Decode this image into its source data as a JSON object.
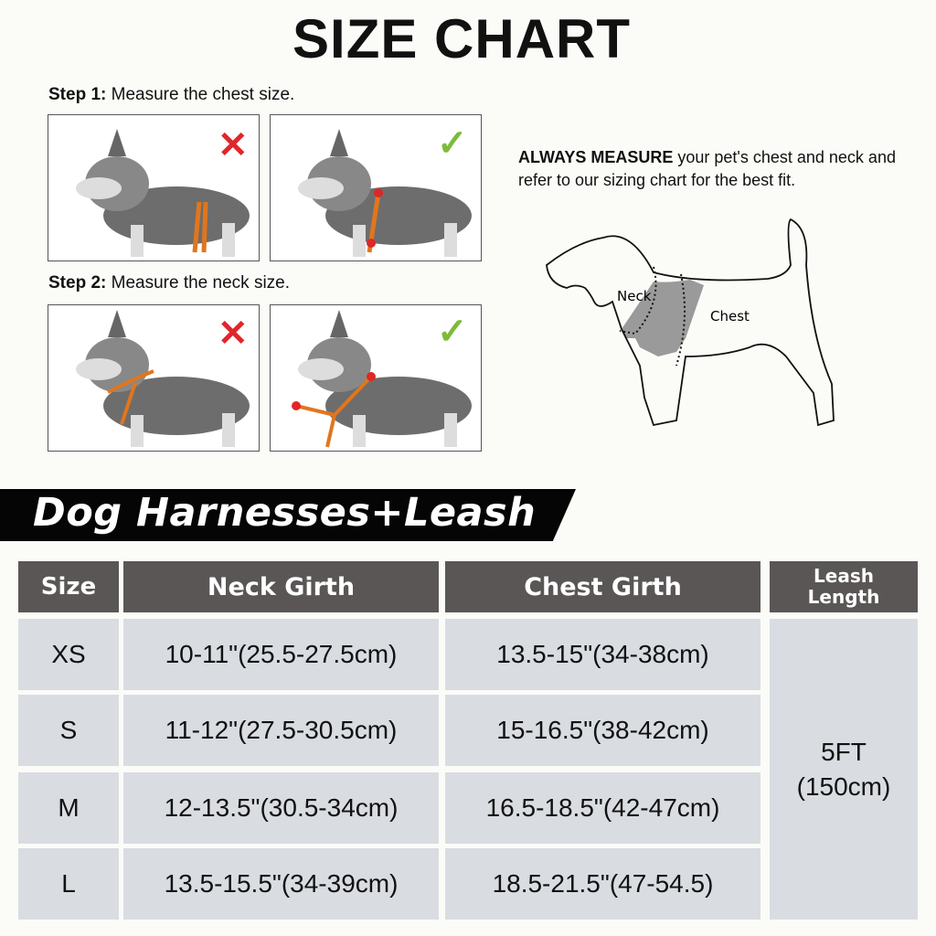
{
  "title": "SIZE CHART",
  "steps": [
    {
      "label": "Step 1:",
      "text": " Measure the chest size."
    },
    {
      "label": "Step 2:",
      "text": " Measure the neck size."
    }
  ],
  "marks": {
    "wrong": "✕",
    "right": "✓",
    "wrong_color": "#e0262b",
    "right_color": "#7dbb3a"
  },
  "instruction": {
    "bold": "ALWAYS MEASURE",
    "text": " your pet's chest and neck and refer to our sizing chart for the best fit."
  },
  "diagram": {
    "neck_label": "Neck",
    "chest_label": "Chest"
  },
  "banner": "Dog Harnesses+Leash",
  "table": {
    "headers": [
      "Size",
      "Neck Girth",
      "Chest Girth",
      "Leash Length"
    ],
    "rows": [
      {
        "size": "XS",
        "neck": "10-11\"(25.5-27.5cm)",
        "chest": "13.5-15\"(34-38cm)"
      },
      {
        "size": "S",
        "neck": "11-12\"(27.5-30.5cm)",
        "chest": "15-16.5\"(38-42cm)"
      },
      {
        "size": "M",
        "neck": "12-13.5\"(30.5-34cm)",
        "chest": "16.5-18.5\"(42-47cm)"
      },
      {
        "size": "L",
        "neck": "13.5-15.5\"(34-39cm)",
        "chest": "18.5-21.5\"(47-54.5)"
      }
    ],
    "leash_line1": "5FT",
    "leash_line2": "(150cm)"
  },
  "colors": {
    "header_bg": "#5a5656",
    "cell_bg": "#d9dce1",
    "strap": "#e0761e"
  }
}
